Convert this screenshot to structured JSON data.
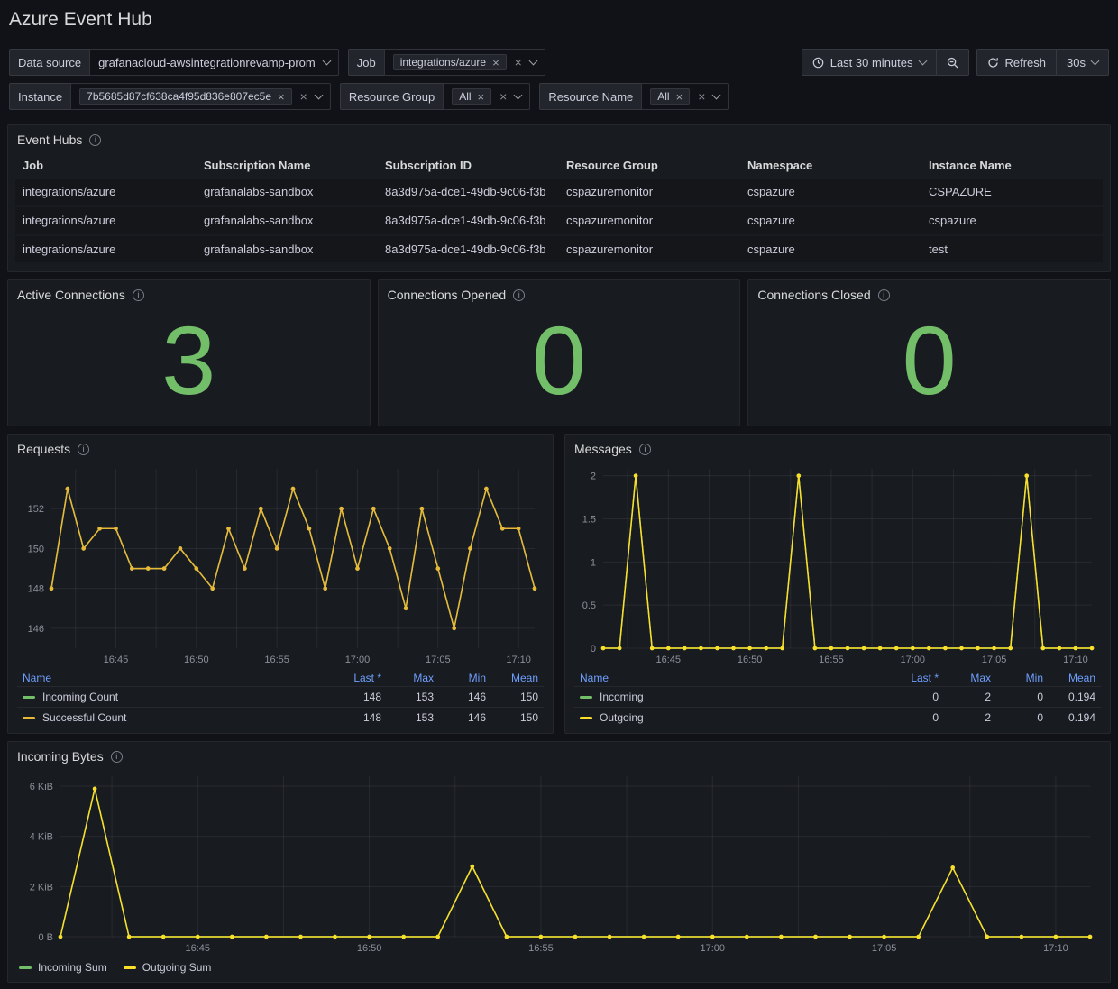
{
  "title": "Azure Event Hub",
  "icons": {
    "info": "i",
    "close": "×"
  },
  "filters": {
    "data_source": {
      "label": "Data source",
      "value": "grafanacloud-awsintegrationrevamp-prom"
    },
    "job": {
      "label": "Job",
      "values": [
        "integrations/azure"
      ]
    },
    "instance": {
      "label": "Instance",
      "values": [
        "7b5685d87cf638ca4f95d836e807ec5e"
      ]
    },
    "resource_group": {
      "label": "Resource Group",
      "values": [
        "All"
      ]
    },
    "resource_name": {
      "label": "Resource Name",
      "values": [
        "All"
      ]
    }
  },
  "time_controls": {
    "range_label": "Last 30 minutes",
    "refresh_label": "Refresh",
    "interval": "30s"
  },
  "event_hubs": {
    "title": "Event Hubs",
    "columns": [
      "Job",
      "Subscription Name",
      "Subscription ID",
      "Resource Group",
      "Namespace",
      "Instance Name"
    ],
    "rows": [
      [
        "integrations/azure",
        "grafanalabs-sandbox",
        "8a3d975a-dce1-49db-9c06-f3b",
        "cspazuremonitor",
        "cspazure",
        "CSPAZURE"
      ],
      [
        "integrations/azure",
        "grafanalabs-sandbox",
        "8a3d975a-dce1-49db-9c06-f3b",
        "cspazuremonitor",
        "cspazure",
        "cspazure"
      ],
      [
        "integrations/azure",
        "grafanalabs-sandbox",
        "8a3d975a-dce1-49db-9c06-f3b",
        "cspazuremonitor",
        "cspazure",
        "test"
      ]
    ]
  },
  "stats": [
    {
      "title": "Active Connections",
      "value": "3",
      "color": "#73bf69"
    },
    {
      "title": "Connections Opened",
      "value": "0",
      "color": "#73bf69"
    },
    {
      "title": "Connections Closed",
      "value": "0",
      "color": "#73bf69"
    }
  ],
  "chart_data": [
    {
      "type": "line",
      "title": "Requests",
      "x": [
        0,
        1,
        2,
        3,
        4,
        5,
        6,
        7,
        8,
        9,
        10,
        11,
        12,
        13,
        14,
        15,
        16,
        17,
        18,
        19,
        20,
        21,
        22,
        23,
        24,
        25,
        26,
        27,
        28,
        29,
        30
      ],
      "xlim": [
        0,
        30
      ],
      "ylim": [
        145,
        154
      ],
      "x_tick_positions": [
        4,
        9,
        14,
        19,
        24,
        29
      ],
      "x_tick_labels": [
        "16:45",
        "16:50",
        "16:55",
        "17:00",
        "17:05",
        "17:10"
      ],
      "y_tick_positions": [
        146,
        148,
        150,
        152
      ],
      "y_tick_labels": [
        "146",
        "148",
        "150",
        "152"
      ],
      "series": [
        {
          "name": "Incoming Count",
          "color": "#73bf69",
          "values": [
            148,
            153,
            150,
            151,
            151,
            149,
            149,
            149,
            150,
            149,
            148,
            151,
            149,
            152,
            150,
            153,
            151,
            148,
            152,
            149,
            152,
            150,
            147,
            152,
            149,
            146,
            150,
            153,
            151,
            151,
            148
          ]
        },
        {
          "name": "Successful Count",
          "color": "#eab839",
          "values": [
            148,
            153,
            150,
            151,
            151,
            149,
            149,
            149,
            150,
            149,
            148,
            151,
            149,
            152,
            150,
            153,
            151,
            148,
            152,
            149,
            152,
            150,
            147,
            152,
            149,
            146,
            150,
            153,
            151,
            151,
            148
          ]
        }
      ],
      "legend": {
        "columns": [
          "Name",
          "Last *",
          "Max",
          "Min",
          "Mean"
        ],
        "rows": [
          [
            "Incoming Count",
            "148",
            "153",
            "146",
            "150"
          ],
          [
            "Successful Count",
            "148",
            "153",
            "146",
            "150"
          ]
        ]
      }
    },
    {
      "type": "line",
      "title": "Messages",
      "x": [
        0,
        1,
        2,
        3,
        4,
        5,
        6,
        7,
        8,
        9,
        10,
        11,
        12,
        13,
        14,
        15,
        16,
        17,
        18,
        19,
        20,
        21,
        22,
        23,
        24,
        25,
        26,
        27,
        28,
        29,
        30
      ],
      "xlim": [
        0,
        30
      ],
      "ylim": [
        0,
        2.08
      ],
      "x_tick_positions": [
        4,
        9,
        14,
        19,
        24,
        29
      ],
      "x_tick_labels": [
        "16:45",
        "16:50",
        "16:55",
        "17:00",
        "17:05",
        "17:10"
      ],
      "y_tick_positions": [
        0,
        0.5,
        1,
        1.5,
        2
      ],
      "y_tick_labels": [
        "0",
        "0.5",
        "1",
        "1.5",
        "2"
      ],
      "series": [
        {
          "name": "Incoming",
          "color": "#73bf69",
          "values": [
            0,
            0,
            2,
            0,
            0,
            0,
            0,
            0,
            0,
            0,
            0,
            0,
            2,
            0,
            0,
            0,
            0,
            0,
            0,
            0,
            0,
            0,
            0,
            0,
            0,
            0,
            2,
            0,
            0,
            0,
            0
          ]
        },
        {
          "name": "Outgoing",
          "color": "#fade2a",
          "values": [
            0,
            0,
            2,
            0,
            0,
            0,
            0,
            0,
            0,
            0,
            0,
            0,
            2,
            0,
            0,
            0,
            0,
            0,
            0,
            0,
            0,
            0,
            0,
            0,
            0,
            0,
            2,
            0,
            0,
            0,
            0
          ]
        }
      ],
      "legend": {
        "columns": [
          "Name",
          "Last *",
          "Max",
          "Min",
          "Mean"
        ],
        "rows": [
          [
            "Incoming",
            "0",
            "2",
            "0",
            "0.194"
          ],
          [
            "Outgoing",
            "0",
            "2",
            "0",
            "0.194"
          ]
        ]
      }
    },
    {
      "type": "line",
      "title": "Incoming Bytes",
      "x": [
        0,
        1,
        2,
        3,
        4,
        5,
        6,
        7,
        8,
        9,
        10,
        11,
        12,
        13,
        14,
        15,
        16,
        17,
        18,
        19,
        20,
        21,
        22,
        23,
        24,
        25,
        26,
        27,
        28,
        29,
        30
      ],
      "xlim": [
        0,
        30
      ],
      "ylim": [
        0,
        6550
      ],
      "x_tick_positions": [
        4,
        9,
        14,
        19,
        24,
        29
      ],
      "x_tick_labels": [
        "16:45",
        "16:50",
        "16:55",
        "17:00",
        "17:05",
        "17:10"
      ],
      "y_tick_positions": [
        0,
        2048,
        4096,
        6144
      ],
      "y_tick_labels": [
        "0 B",
        "2 KiB",
        "4 KiB",
        "6 KiB"
      ],
      "series": [
        {
          "name": "Incoming Sum",
          "color": "#73bf69",
          "values": [
            0,
            6040,
            0,
            0,
            0,
            0,
            0,
            0,
            0,
            0,
            0,
            0,
            2870,
            0,
            0,
            0,
            0,
            0,
            0,
            0,
            0,
            0,
            0,
            0,
            0,
            0,
            2820,
            0,
            0,
            0,
            0
          ]
        },
        {
          "name": "Outgoing Sum",
          "color": "#fade2a",
          "values": [
            0,
            6040,
            0,
            0,
            0,
            0,
            0,
            0,
            0,
            0,
            0,
            0,
            2870,
            0,
            0,
            0,
            0,
            0,
            0,
            0,
            0,
            0,
            0,
            0,
            0,
            0,
            2820,
            0,
            0,
            0,
            0
          ]
        }
      ]
    }
  ]
}
